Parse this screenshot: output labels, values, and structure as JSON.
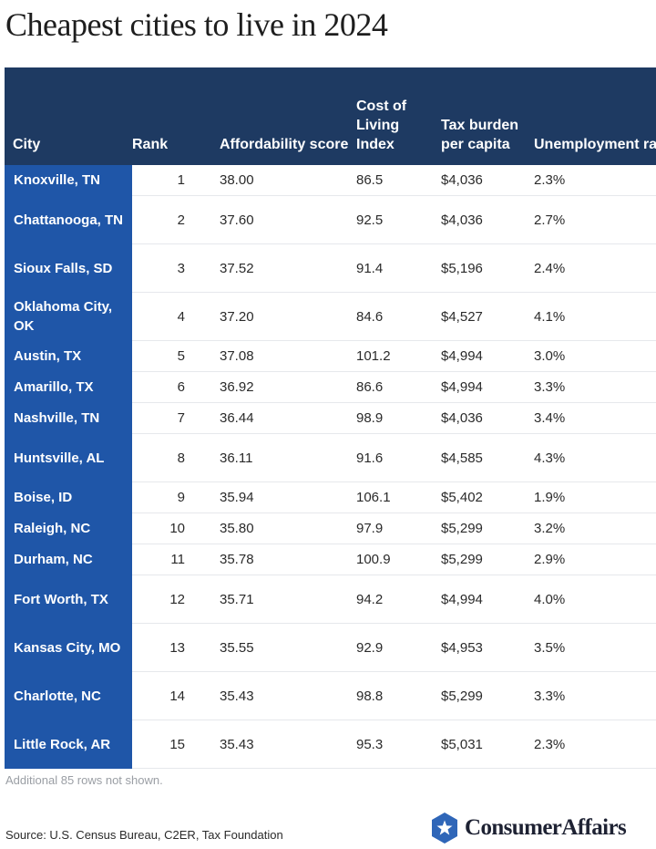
{
  "title": "Cheapest cities to live in 2024",
  "table": {
    "headers": [
      "City",
      "Rank",
      "Affordability score",
      "Cost of Living Index",
      "Tax burden per capita",
      "Unemployment rate"
    ],
    "rows": [
      [
        "Knoxville, TN",
        "1",
        "38.00",
        "86.5",
        "$4,036",
        "2.3%"
      ],
      [
        "Chattanooga, TN",
        "2",
        "37.60",
        "92.5",
        "$4,036",
        "2.7%"
      ],
      [
        "Sioux Falls, SD",
        "3",
        "37.52",
        "91.4",
        "$5,196",
        "2.4%"
      ],
      [
        "Oklahoma City, OK",
        "4",
        "37.20",
        "84.6",
        "$4,527",
        "4.1%"
      ],
      [
        "Austin, TX",
        "5",
        "37.08",
        "101.2",
        "$4,994",
        "3.0%"
      ],
      [
        "Amarillo, TX",
        "6",
        "36.92",
        "86.6",
        "$4,994",
        "3.3%"
      ],
      [
        "Nashville, TN",
        "7",
        "36.44",
        "98.9",
        "$4,036",
        "3.4%"
      ],
      [
        "Huntsville, AL",
        "8",
        "36.11",
        "91.6",
        "$4,585",
        "4.3%"
      ],
      [
        "Boise, ID",
        "9",
        "35.94",
        "106.1",
        "$5,402",
        "1.9%"
      ],
      [
        "Raleigh, NC",
        "10",
        "35.80",
        "97.9",
        "$5,299",
        "3.2%"
      ],
      [
        "Durham, NC",
        "11",
        "35.78",
        "100.9",
        "$5,299",
        "2.9%"
      ],
      [
        "Fort Worth, TX",
        "12",
        "35.71",
        "94.2",
        "$4,994",
        "4.0%"
      ],
      [
        "Kansas City, MO",
        "13",
        "35.55",
        "92.9",
        "$4,953",
        "3.5%"
      ],
      [
        "Charlotte, NC",
        "14",
        "35.43",
        "98.8",
        "$5,299",
        "3.3%"
      ],
      [
        "Little Rock, AR",
        "15",
        "35.43",
        "95.3",
        "$5,031",
        "2.3%"
      ]
    ]
  },
  "footnote": "Additional 85 rows not shown.",
  "source": "Source: U.S. Census Bureau, C2ER, Tax Foundation",
  "brand": {
    "name": "ConsumerAffairs",
    "logo_icon": "star-hexagon-icon"
  },
  "colors": {
    "header_bg": "#1e3a62",
    "city_column_bg": "#1f56a8",
    "logo_blue": "#2f66b8"
  }
}
